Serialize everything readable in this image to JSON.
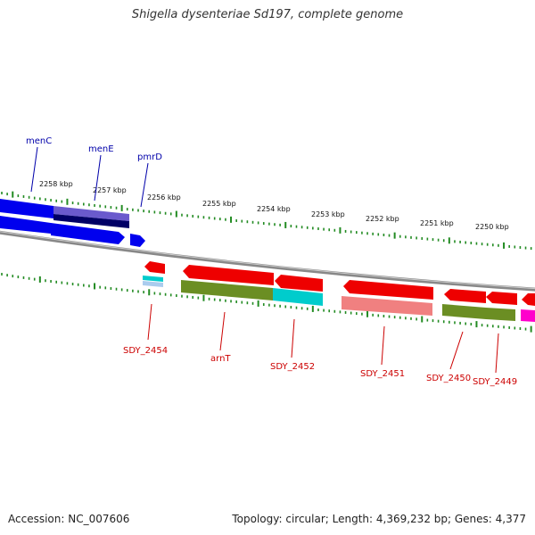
{
  "title": "Shigella dysenteriae Sd197, complete genome",
  "footer": {
    "accession": "Accession: NC_007606",
    "summary": "Topology: circular; Length: 4,369,232 bp; Genes: 4,377"
  },
  "colors": {
    "forward_label": "#0000aa",
    "reverse_label": "#cc0000",
    "tick": "#228B22",
    "backbone": "#888888",
    "blue": "#0000ee",
    "slate": "#6a5acd",
    "navy": "#000066",
    "red": "#ee0000",
    "olive": "#6b8e23",
    "cyan": "#00cccc",
    "pink": "#f08080",
    "magenta": "#ff00cc",
    "lightblue": "#aaccee"
  },
  "scale_ticks": [
    "2258 kbp",
    "2257 kbp",
    "2256 kbp",
    "2255 kbp",
    "2254 kbp",
    "2253 kbp",
    "2252 kbp",
    "2251 kbp",
    "2250 kbp"
  ],
  "genes_top": [
    "menC",
    "menE",
    "pmrD"
  ],
  "genes_bottom": [
    "SDY_2454",
    "arnT",
    "SDY_2452",
    "SDY_2451",
    "SDY_2450",
    "SDY_2449"
  ]
}
